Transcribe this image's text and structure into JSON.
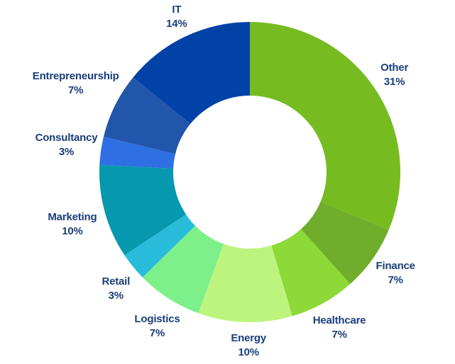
{
  "page": {
    "background_color": "#ffffff",
    "text_color": "#1a3e7a"
  },
  "chart_data": {
    "type": "pie",
    "subtype": "donut",
    "title": "",
    "unit": "%",
    "legend": "none",
    "start_angle_deg": 0,
    "direction": "clockwise",
    "donut_hole_ratio": 0.51,
    "label_color": "#1a3e7a",
    "categories": [
      "Other",
      "Finance",
      "Healthcare",
      "Energy",
      "Logistics",
      "Retail",
      "Marketing",
      "Consultancy",
      "Entrepreneurship",
      "IT"
    ],
    "values": [
      31,
      7,
      7,
      10,
      7,
      3,
      10,
      3,
      7,
      14
    ],
    "slices": [
      {
        "label": "Other",
        "pct": 31,
        "display": "31%",
        "color": "#76bc21"
      },
      {
        "label": "Finance",
        "pct": 7,
        "display": "7%",
        "color": "#6fad2b"
      },
      {
        "label": "Healthcare",
        "pct": 7,
        "display": "7%",
        "color": "#8cd938"
      },
      {
        "label": "Energy",
        "pct": 10,
        "display": "10%",
        "color": "#bcf47e"
      },
      {
        "label": "Logistics",
        "pct": 7,
        "display": "7%",
        "color": "#7ef08a"
      },
      {
        "label": "Retail",
        "pct": 3,
        "display": "3%",
        "color": "#29bcda"
      },
      {
        "label": "Marketing",
        "pct": 10,
        "display": "10%",
        "color": "#0698ae"
      },
      {
        "label": "Consultancy",
        "pct": 3,
        "display": "3%",
        "color": "#2e6fe3"
      },
      {
        "label": "Entrepreneurship",
        "pct": 7,
        "display": "7%",
        "color": "#2256aa"
      },
      {
        "label": "IT",
        "pct": 14,
        "display": "14%",
        "color": "#0142a7"
      }
    ]
  }
}
